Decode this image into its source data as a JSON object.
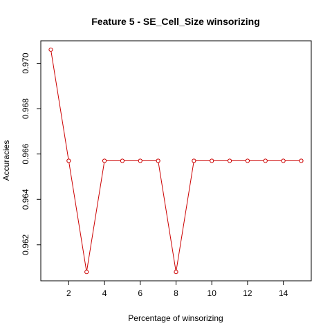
{
  "chart_data": {
    "type": "line",
    "title": "Feature 5 - SE_Cell_Size winsorizing",
    "xlabel": "Percentage of winsorizing",
    "ylabel": "Accuracies",
    "x": [
      1,
      2,
      3,
      4,
      5,
      6,
      7,
      8,
      9,
      10,
      11,
      12,
      13,
      14,
      15
    ],
    "values": [
      0.9706,
      0.9657,
      0.9608,
      0.9657,
      0.9657,
      0.9657,
      0.9657,
      0.9608,
      0.9657,
      0.9657,
      0.9657,
      0.9657,
      0.9657,
      0.9657,
      0.9657
    ],
    "xlim": [
      0.44,
      15.56
    ],
    "ylim": [
      0.96041,
      0.97099
    ],
    "xticks": [
      2,
      4,
      6,
      8,
      10,
      12,
      14
    ],
    "yticks": [
      0.962,
      0.964,
      0.966,
      0.968,
      0.97
    ],
    "xtick_labels": [
      "2",
      "4",
      "6",
      "8",
      "10",
      "12",
      "14"
    ],
    "ytick_labels": [
      "0.962",
      "0.964",
      "0.966",
      "0.968",
      "0.970"
    ],
    "grid": false,
    "marker": "open-circle",
    "line_color": "#cc0000",
    "axis_color": "#000000"
  }
}
